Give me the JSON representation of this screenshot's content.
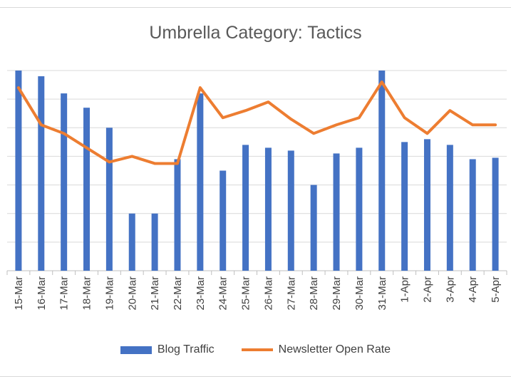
{
  "chart_data": {
    "type": "bar",
    "title": "Umbrella Category: Tactics",
    "categories": [
      "15-Mar",
      "16-Mar",
      "17-Mar",
      "18-Mar",
      "19-Mar",
      "20-Mar",
      "21-Mar",
      "22-Mar",
      "23-Mar",
      "24-Mar",
      "25-Mar",
      "26-Mar",
      "27-Mar",
      "28-Mar",
      "29-Mar",
      "30-Mar",
      "31-Mar",
      "1-Apr",
      "2-Apr",
      "3-Apr",
      "4-Apr",
      "5-Apr"
    ],
    "ylim": [
      0,
      7
    ],
    "grid": true,
    "legend_position": "bottom",
    "series": [
      {
        "name": "Blog Traffic",
        "type": "bar",
        "color": "#4472c4",
        "values": [
          7.0,
          6.8,
          6.2,
          5.7,
          5.0,
          2.0,
          2.0,
          3.9,
          6.2,
          3.5,
          4.4,
          4.3,
          4.2,
          3.0,
          4.1,
          4.3,
          7.0,
          4.5,
          4.6,
          4.4,
          3.9,
          3.95
        ]
      },
      {
        "name": "Newsletter Open Rate",
        "type": "line",
        "color": "#ed7d31",
        "values": [
          6.4,
          5.1,
          4.8,
          4.3,
          3.8,
          4.0,
          3.75,
          3.75,
          6.4,
          5.35,
          5.6,
          5.9,
          5.3,
          4.8,
          5.1,
          5.35,
          6.6,
          5.35,
          4.8,
          5.6,
          5.1,
          5.1
        ]
      }
    ]
  }
}
